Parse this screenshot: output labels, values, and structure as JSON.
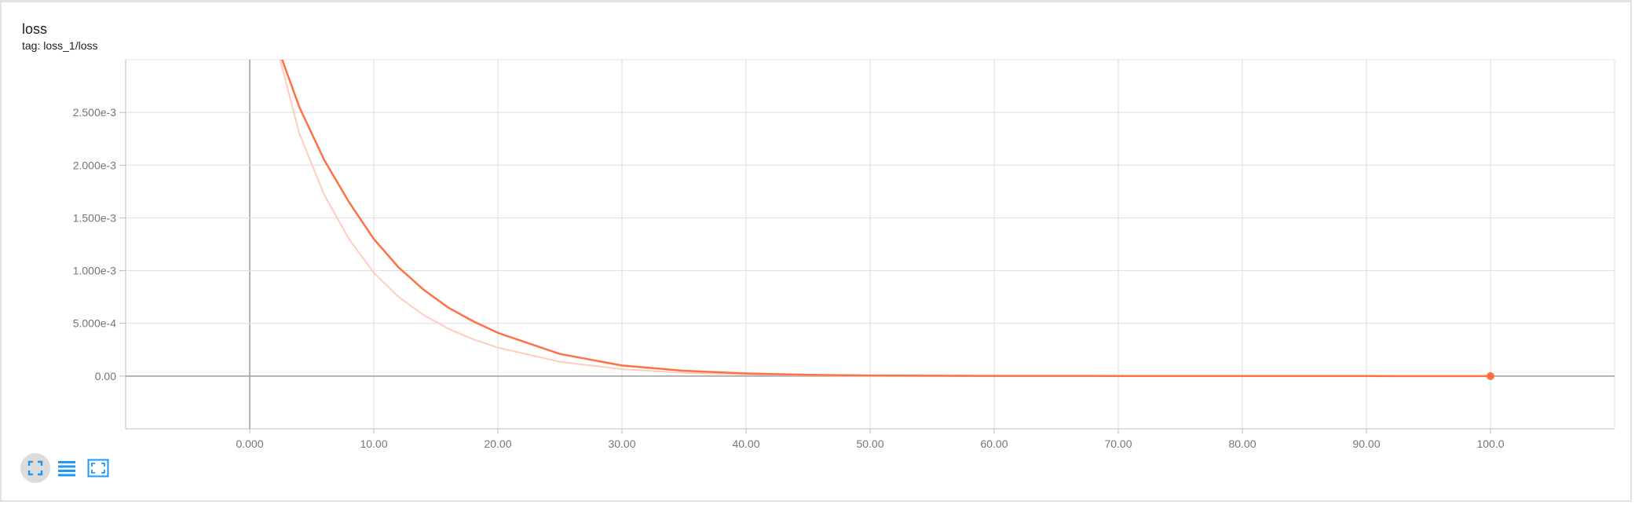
{
  "card": {
    "title": "loss",
    "tag": "tag: loss_1/loss"
  },
  "toolbar": {
    "buttons": [
      {
        "icon": "fit-domain-icon",
        "active": true
      },
      {
        "icon": "log-scale-icon",
        "active": false
      },
      {
        "icon": "expand-icon",
        "active": false
      }
    ],
    "accent": "#2196f3"
  },
  "chart_data": {
    "type": "line",
    "title": "loss",
    "xlabel": "",
    "ylabel": "",
    "xlim": [
      -10,
      110
    ],
    "ylim": [
      -0.0005,
      0.003
    ],
    "grid": true,
    "x_ticks": [
      0,
      10,
      20,
      30,
      40,
      50,
      60,
      70,
      80,
      90,
      100
    ],
    "x_tick_labels": [
      "0.000",
      "10.00",
      "20.00",
      "30.00",
      "40.00",
      "50.00",
      "60.00",
      "70.00",
      "80.00",
      "90.00",
      "100.0"
    ],
    "y_ticks": [
      0,
      0.0005,
      0.001,
      0.0015,
      0.002,
      0.0025
    ],
    "y_tick_labels": [
      "0.00",
      "5.000e-4",
      "1.000e-3",
      "1.500e-3",
      "2.000e-3",
      "2.500e-3"
    ],
    "series": [
      {
        "role": "smoothed",
        "color": "#ff7043",
        "x": [
          2,
          4,
          6,
          8,
          10,
          12,
          14,
          16,
          18,
          20,
          25,
          30,
          35,
          40,
          45,
          50,
          60,
          70,
          80,
          90,
          100
        ],
        "y": [
          0.0032,
          0.00255,
          0.00205,
          0.00165,
          0.0013,
          0.00103,
          0.00082,
          0.00065,
          0.00052,
          0.00041,
          0.00021,
          0.0001,
          5e-05,
          2.5e-05,
          1.2e-05,
          6e-06,
          2e-06,
          8e-07,
          3e-07,
          1e-07,
          0.0
        ]
      },
      {
        "role": "raw",
        "color": "#ffcdbf",
        "x": [
          2,
          4,
          6,
          8,
          10,
          12,
          14,
          16,
          18,
          20,
          25,
          30,
          35,
          40,
          45,
          50,
          60,
          70,
          80,
          90,
          100
        ],
        "y": [
          0.0032,
          0.0023,
          0.00172,
          0.0013,
          0.00098,
          0.00075,
          0.00058,
          0.00045,
          0.00035,
          0.00027,
          0.000135,
          6.5e-05,
          3e-05,
          1.5e-05,
          7e-06,
          3e-06,
          1e-06,
          4e-07,
          1e-07,
          0.0,
          0.0
        ]
      }
    ]
  }
}
